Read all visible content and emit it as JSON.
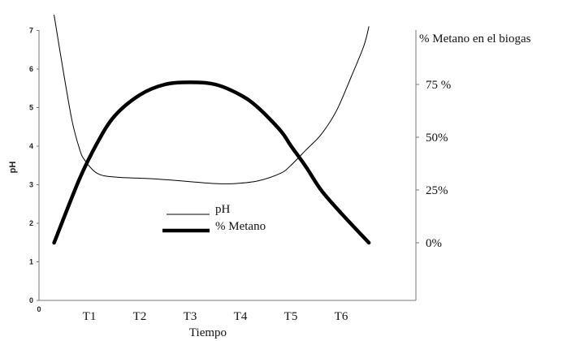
{
  "chart_data": {
    "type": "line",
    "title": "",
    "xlabel": "Tiempo",
    "ylabel": "pH",
    "y2label": "% Metano en el biogas",
    "categories": [
      "T1",
      "T2",
      "T3",
      "T4",
      "T5",
      "T6"
    ],
    "x": [
      0.3,
      0.8,
      1.15,
      2.3,
      3.5,
      4.35,
      5.0,
      5.6,
      6.2,
      6.55
    ],
    "ylim": [
      0,
      7
    ],
    "y_ticks": [
      "0",
      "1",
      "2",
      "3",
      "4",
      "5",
      "6",
      "7"
    ],
    "y2_ticks": [
      "0%",
      "25%",
      "50%",
      "75 %"
    ],
    "legend": {
      "position": "center",
      "entries": [
        "pH",
        "% Metano"
      ]
    },
    "series": [
      {
        "name": "pH",
        "axis": "left",
        "color": "#000000",
        "x": [
          0.3,
          0.45,
          0.65,
          0.8,
          0.9,
          1.15,
          1.5,
          2.3,
          3.0,
          3.5,
          3.9,
          4.35,
          4.8,
          5.0,
          5.3,
          5.6,
          5.9,
          6.2,
          6.45,
          6.55
        ],
        "values": [
          7.4,
          6.2,
          4.7,
          3.95,
          3.65,
          3.3,
          3.2,
          3.15,
          3.08,
          3.03,
          3.03,
          3.1,
          3.3,
          3.5,
          3.9,
          4.3,
          4.9,
          5.8,
          6.6,
          7.1
        ]
      },
      {
        "name": "% Metano",
        "axis": "right",
        "color": "#000000",
        "x": [
          0.3,
          0.8,
          1.15,
          1.5,
          2.0,
          2.5,
          3.0,
          3.5,
          4.0,
          4.35,
          4.8,
          5.0,
          5.3,
          5.6,
          6.0,
          6.55
        ],
        "values": [
          0,
          30,
          47,
          60,
          70,
          75,
          76,
          75,
          70,
          64,
          53,
          46,
          36,
          25,
          14,
          0
        ]
      }
    ]
  }
}
